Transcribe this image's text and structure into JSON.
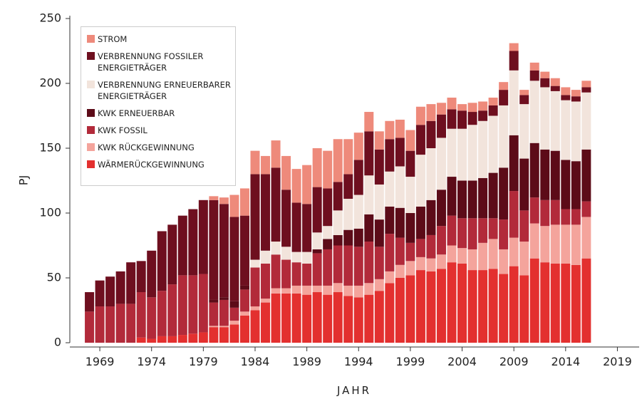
{
  "chart_data": {
    "type": "stacked-bar",
    "xlabel": "JAHR",
    "ylabel": "PJ",
    "x": [
      1968,
      1969,
      1970,
      1971,
      1972,
      1973,
      1974,
      1975,
      1976,
      1977,
      1978,
      1979,
      1980,
      1981,
      1982,
      1983,
      1984,
      1985,
      1986,
      1987,
      1988,
      1989,
      1990,
      1991,
      1992,
      1993,
      1994,
      1995,
      1996,
      1997,
      1998,
      1999,
      2000,
      2001,
      2002,
      2003,
      2004,
      2005,
      2006,
      2007,
      2008,
      2009,
      2010,
      2011,
      2012,
      2013,
      2014,
      2015,
      2016
    ],
    "xlim": [
      1966,
      2021
    ],
    "xticks": [
      1969,
      1974,
      1979,
      1984,
      1989,
      1994,
      1999,
      2004,
      2009,
      2014,
      2019
    ],
    "ylim": [
      0,
      250
    ],
    "yticks": [
      0,
      50,
      100,
      150,
      200,
      250
    ],
    "series": [
      {
        "name": "WÄRMERÜCKGEWINNUNG",
        "color": "#e3302f",
        "values": [
          0,
          0,
          0,
          0,
          0,
          4,
          3,
          5,
          5,
          6,
          7,
          8,
          12,
          12,
          14,
          21,
          25,
          31,
          38,
          38,
          38,
          37,
          39,
          37,
          39,
          36,
          35,
          37,
          40,
          46,
          50,
          52,
          56,
          55,
          57,
          62,
          61,
          56,
          56,
          57,
          53,
          59,
          52,
          65,
          62,
          61,
          61,
          60,
          65
        ]
      },
      {
        "name": "KWK RÜCKGEWINNUNG",
        "color": "#f4a49c",
        "values": [
          0,
          0,
          0,
          0,
          0,
          0,
          0,
          0,
          0,
          0,
          0,
          0,
          1,
          1,
          3,
          3,
          3,
          3,
          4,
          4,
          6,
          7,
          5,
          7,
          7,
          8,
          9,
          9,
          9,
          9,
          10,
          11,
          10,
          10,
          11,
          13,
          12,
          16,
          21,
          23,
          19,
          22,
          26,
          27,
          28,
          30,
          30,
          31,
          32
        ]
      },
      {
        "name": "KWK FOSSIL",
        "color": "#b22a3a",
        "values": [
          24,
          28,
          28,
          30,
          30,
          35,
          32,
          35,
          40,
          46,
          45,
          45,
          18,
          20,
          10,
          17,
          30,
          27,
          26,
          22,
          18,
          17,
          25,
          28,
          29,
          31,
          30,
          32,
          25,
          29,
          21,
          14,
          14,
          18,
          22,
          23,
          23,
          24,
          19,
          16,
          23,
          36,
          24,
          20,
          20,
          19,
          12,
          12,
          12
        ]
      },
      {
        "name": "KWK ERNEUERBAR",
        "color": "#5c0b18",
        "values": [
          0,
          0,
          0,
          0,
          0,
          0,
          0,
          0,
          0,
          0,
          0,
          0,
          2,
          2,
          5,
          3,
          0,
          0,
          0,
          0,
          0,
          0,
          3,
          8,
          8,
          12,
          14,
          21,
          21,
          21,
          23,
          23,
          25,
          27,
          28,
          30,
          29,
          29,
          31,
          35,
          40,
          43,
          40,
          42,
          39,
          38,
          38,
          37,
          40
        ]
      },
      {
        "name": "VERBRENNUNG ERNEUERBARER ENERGIETRÄGER",
        "color": "#f2e4dc",
        "values": [
          0,
          0,
          0,
          0,
          0,
          0,
          0,
          0,
          0,
          0,
          0,
          0,
          0,
          0,
          0,
          0,
          6,
          10,
          10,
          10,
          8,
          9,
          13,
          10,
          19,
          24,
          26,
          30,
          27,
          27,
          32,
          28,
          40,
          40,
          40,
          37,
          40,
          43,
          44,
          44,
          48,
          50,
          42,
          48,
          48,
          46,
          46,
          46,
          44
        ]
      },
      {
        "name": "VERBRENNUNG FOSSILER ENERGIETRÄGER",
        "color": "#6e0f1f",
        "values": [
          15,
          20,
          23,
          25,
          32,
          24,
          36,
          46,
          46,
          46,
          51,
          57,
          77,
          72,
          65,
          54,
          66,
          59,
          57,
          44,
          38,
          37,
          35,
          29,
          22,
          19,
          27,
          34,
          27,
          25,
          22,
          20,
          23,
          21,
          18,
          15,
          14,
          10,
          8,
          8,
          12,
          15,
          7,
          8,
          7,
          4,
          4,
          4,
          4
        ]
      },
      {
        "name": "STROM",
        "color": "#ee8a7b",
        "values": [
          0,
          0,
          0,
          0,
          0,
          0,
          0,
          0,
          0,
          0,
          0,
          0,
          3,
          5,
          17,
          21,
          18,
          14,
          21,
          26,
          26,
          30,
          30,
          29,
          33,
          27,
          21,
          15,
          14,
          14,
          14,
          16,
          14,
          13,
          9,
          9,
          5,
          7,
          7,
          6,
          6,
          6,
          4,
          6,
          5,
          6,
          6,
          5,
          5
        ]
      }
    ]
  }
}
